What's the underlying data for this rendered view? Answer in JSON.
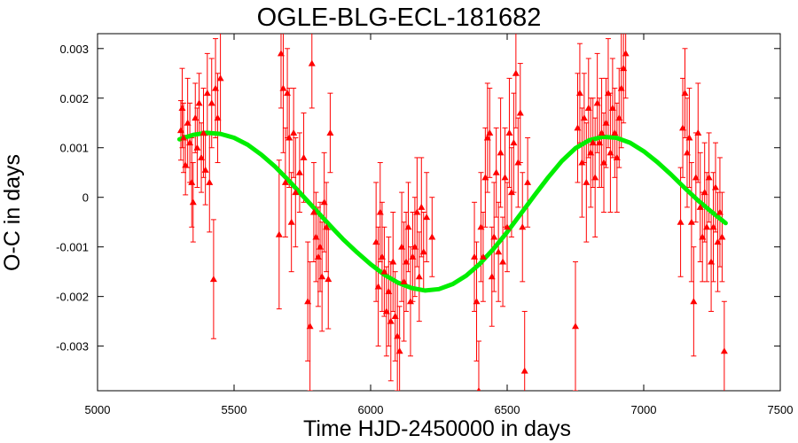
{
  "chart_data": {
    "type": "scatter",
    "title": "OGLE-BLG-ECL-181682",
    "xlabel": "Time HJD-2450000 in days",
    "ylabel": "O-C in days",
    "xlim": [
      5000,
      7500
    ],
    "ylim": [
      -0.0039,
      0.0033
    ],
    "x_ticks": [
      5000,
      5500,
      6000,
      6500,
      7000,
      7500
    ],
    "x_tick_labels": [
      "5000",
      "5500",
      "6000",
      "6500",
      "7000",
      "7500"
    ],
    "y_ticks": [
      0.003,
      0.002,
      0.001,
      0,
      -0.001,
      -0.002,
      -0.003
    ],
    "y_tick_labels": [
      "0.003",
      "0.002",
      "0.001",
      "0",
      "-0.001",
      "-0.002",
      "-0.003"
    ],
    "grid": false,
    "colors": {
      "points": "#ff0000",
      "fit": "#00ee00",
      "axes": "#000000"
    },
    "series": [
      {
        "marker": "triangle",
        "points": [
          {
            "x": 5305,
            "y": 0.00135,
            "err": 0.0006
          },
          {
            "x": 5310,
            "y": 0.0018,
            "err": 0.0008
          },
          {
            "x": 5315,
            "y": 0.0012,
            "err": 0.0007
          },
          {
            "x": 5322,
            "y": 0.00065,
            "err": 0.0006
          },
          {
            "x": 5330,
            "y": 0.0015,
            "err": 0.0009
          },
          {
            "x": 5338,
            "y": 0.0011,
            "err": 0.0008
          },
          {
            "x": 5345,
            "y": 0.0003,
            "err": 0.0009
          },
          {
            "x": 5350,
            "y": -0.0001,
            "err": 0.0008
          },
          {
            "x": 5358,
            "y": 0.0016,
            "err": 0.0007
          },
          {
            "x": 5365,
            "y": 0.001,
            "err": 0.0008
          },
          {
            "x": 5372,
            "y": 0.0019,
            "err": 0.0006
          },
          {
            "x": 5380,
            "y": 0.0008,
            "err": 0.0007
          },
          {
            "x": 5388,
            "y": 0.0013,
            "err": 0.0009
          },
          {
            "x": 5395,
            "y": 0.00055,
            "err": 0.0007
          },
          {
            "x": 5402,
            "y": 0.0021,
            "err": 0.0008
          },
          {
            "x": 5410,
            "y": 0.0003,
            "err": 0.001
          },
          {
            "x": 5418,
            "y": 0.0019,
            "err": 0.0009
          },
          {
            "x": 5425,
            "y": -0.00165,
            "err": 0.0012
          },
          {
            "x": 5432,
            "y": 0.0022,
            "err": 0.001
          },
          {
            "x": 5440,
            "y": 0.0016,
            "err": 0.0009
          },
          {
            "x": 5450,
            "y": 0.0024,
            "err": 0.0011
          },
          {
            "x": 5665,
            "y": -0.00075,
            "err": 0.0015
          },
          {
            "x": 5672,
            "y": 0.0029,
            "err": 0.0011
          },
          {
            "x": 5680,
            "y": 0.0022,
            "err": 0.0013
          },
          {
            "x": 5688,
            "y": 0.0003,
            "err": 0.0011
          },
          {
            "x": 5695,
            "y": 0.0021,
            "err": 0.0009
          },
          {
            "x": 5702,
            "y": 0.0012,
            "err": 0.001
          },
          {
            "x": 5710,
            "y": -0.0005,
            "err": 0.001
          },
          {
            "x": 5718,
            "y": 0.0013,
            "err": 0.0009
          },
          {
            "x": 5725,
            "y": 0.0001,
            "err": 0.0011
          },
          {
            "x": 5740,
            "y": 0.0005,
            "err": 0.0008
          },
          {
            "x": 5755,
            "y": 0.0008,
            "err": 0.0009
          },
          {
            "x": 5770,
            "y": -0.0021,
            "err": 0.0012
          },
          {
            "x": 5778,
            "y": -0.0026,
            "err": 0.0013
          },
          {
            "x": 5785,
            "y": 0.0027,
            "err": 0.0009
          },
          {
            "x": 5792,
            "y": -0.0003,
            "err": 0.001
          },
          {
            "x": 5800,
            "y": -0.0008,
            "err": 0.0009
          },
          {
            "x": 5808,
            "y": -0.0012,
            "err": 0.001
          },
          {
            "x": 5815,
            "y": -0.001,
            "err": 0.0009
          },
          {
            "x": 5822,
            "y": -0.0016,
            "err": 0.0011
          },
          {
            "x": 5830,
            "y": -0.0001,
            "err": 0.001
          },
          {
            "x": 5838,
            "y": -0.0006,
            "err": 0.0009
          },
          {
            "x": 5845,
            "y": -0.00165,
            "err": 0.001
          },
          {
            "x": 5852,
            "y": 0.0013,
            "err": 0.0008
          },
          {
            "x": 6020,
            "y": -0.0009,
            "err": 0.0012
          },
          {
            "x": 6028,
            "y": -0.0018,
            "err": 0.0012
          },
          {
            "x": 6035,
            "y": -0.0003,
            "err": 0.001
          },
          {
            "x": 6042,
            "y": -0.0012,
            "err": 0.0011
          },
          {
            "x": 6050,
            "y": -0.0015,
            "err": 0.0009
          },
          {
            "x": 6058,
            "y": -0.0023,
            "err": 0.0009
          },
          {
            "x": 6066,
            "y": -0.0019,
            "err": 0.0011
          },
          {
            "x": 6074,
            "y": -0.0025,
            "err": 0.0012
          },
          {
            "x": 6082,
            "y": -0.0013,
            "err": 0.001
          },
          {
            "x": 6090,
            "y": -0.0024,
            "err": 0.0009
          },
          {
            "x": 6098,
            "y": -0.0028,
            "err": 0.0011
          },
          {
            "x": 6106,
            "y": -0.0031,
            "err": 0.0009
          },
          {
            "x": 6114,
            "y": -0.001,
            "err": 0.0011
          },
          {
            "x": 6122,
            "y": -0.0017,
            "err": 0.0012
          },
          {
            "x": 6130,
            "y": -0.0013,
            "err": 0.001
          },
          {
            "x": 6138,
            "y": -0.0006,
            "err": 0.0009
          },
          {
            "x": 6146,
            "y": -0.0021,
            "err": 0.0011
          },
          {
            "x": 6154,
            "y": -0.0012,
            "err": 0.0009
          },
          {
            "x": 6162,
            "y": -0.001,
            "err": 0.001
          },
          {
            "x": 6170,
            "y": -0.0003,
            "err": 0.0011
          },
          {
            "x": 6178,
            "y": -0.0016,
            "err": 0.0009
          },
          {
            "x": 6186,
            "y": -0.0002,
            "err": 0.001
          },
          {
            "x": 6194,
            "y": -0.0011,
            "err": 0.0008
          },
          {
            "x": 6205,
            "y": -0.0004,
            "err": 0.0009
          },
          {
            "x": 6225,
            "y": -0.0008,
            "err": 0.0008
          },
          {
            "x": 6380,
            "y": -0.0012,
            "err": 0.0011
          },
          {
            "x": 6388,
            "y": -0.0021,
            "err": 0.0012
          },
          {
            "x": 6396,
            "y": -0.0039,
            "err": 0.001
          },
          {
            "x": 6404,
            "y": -0.0006,
            "err": 0.0011
          },
          {
            "x": 6412,
            "y": -0.0012,
            "err": 0.0009
          },
          {
            "x": 6420,
            "y": 0.0004,
            "err": 0.001
          },
          {
            "x": 6428,
            "y": 0.0012,
            "err": 0.0011
          },
          {
            "x": 6436,
            "y": 0.0013,
            "err": 0.0009
          },
          {
            "x": 6444,
            "y": -0.0016,
            "err": 0.001
          },
          {
            "x": 6452,
            "y": -0.0008,
            "err": 0.0011
          },
          {
            "x": 6460,
            "y": 0.0005,
            "err": 0.0009
          },
          {
            "x": 6468,
            "y": -0.0011,
            "err": 0.001
          },
          {
            "x": 6476,
            "y": 0.0009,
            "err": 0.0011
          },
          {
            "x": 6484,
            "y": -0.0013,
            "err": 0.0009
          },
          {
            "x": 6492,
            "y": 0.0004,
            "err": 0.001
          },
          {
            "x": 6500,
            "y": -0.0006,
            "err": 0.0009
          },
          {
            "x": 6508,
            "y": 0.0013,
            "err": 0.0011
          },
          {
            "x": 6516,
            "y": 0.0001,
            "err": 0.0009
          },
          {
            "x": 6524,
            "y": 0.0011,
            "err": 0.001
          },
          {
            "x": 6532,
            "y": 0.0025,
            "err": 0.0011
          },
          {
            "x": 6540,
            "y": 0.0007,
            "err": 0.0009
          },
          {
            "x": 6548,
            "y": 0.0017,
            "err": 0.001
          },
          {
            "x": 6556,
            "y": -0.0006,
            "err": 0.0011
          },
          {
            "x": 6564,
            "y": -0.0035,
            "err": 0.0012
          },
          {
            "x": 6575,
            "y": 0.0003,
            "err": 0.0009
          },
          {
            "x": 6750,
            "y": -0.0026,
            "err": 0.0013
          },
          {
            "x": 6758,
            "y": 0.0014,
            "err": 0.0011
          },
          {
            "x": 6766,
            "y": 0.0021,
            "err": 0.001
          },
          {
            "x": 6774,
            "y": 0.0007,
            "err": 0.0011
          },
          {
            "x": 6782,
            "y": 0.0016,
            "err": 0.0009
          },
          {
            "x": 6790,
            "y": 0.0003,
            "err": 0.0012
          },
          {
            "x": 6798,
            "y": 0.0018,
            "err": 0.001
          },
          {
            "x": 6806,
            "y": 0.0009,
            "err": 0.0011
          },
          {
            "x": 6814,
            "y": 0.0011,
            "err": 0.0009
          },
          {
            "x": 6822,
            "y": 0.0004,
            "err": 0.0012
          },
          {
            "x": 6830,
            "y": 0.0019,
            "err": 0.001
          },
          {
            "x": 6838,
            "y": 0.0011,
            "err": 0.0009
          },
          {
            "x": 6846,
            "y": 0.0013,
            "err": 0.0011
          },
          {
            "x": 6854,
            "y": 0.0007,
            "err": 0.001
          },
          {
            "x": 6862,
            "y": 0.0015,
            "err": 0.0009
          },
          {
            "x": 6870,
            "y": 0.0021,
            "err": 0.0011
          },
          {
            "x": 6878,
            "y": 0.0009,
            "err": 0.0012
          },
          {
            "x": 6886,
            "y": 0.0018,
            "err": 0.001
          },
          {
            "x": 6894,
            "y": 0.0013,
            "err": 0.0009
          },
          {
            "x": 6902,
            "y": 0.0008,
            "err": 0.0011
          },
          {
            "x": 6910,
            "y": 0.0016,
            "err": 0.001
          },
          {
            "x": 6918,
            "y": 0.0022,
            "err": 0.0012
          },
          {
            "x": 6926,
            "y": 0.0026,
            "err": 0.0011
          },
          {
            "x": 6934,
            "y": 0.0029,
            "err": 0.0009
          },
          {
            "x": 7135,
            "y": -0.0005,
            "err": 0.0011
          },
          {
            "x": 7143,
            "y": 0.0014,
            "err": 0.001
          },
          {
            "x": 7151,
            "y": 0.0021,
            "err": 0.0009
          },
          {
            "x": 7159,
            "y": 0.0009,
            "err": 0.0011
          },
          {
            "x": 7167,
            "y": 0.0012,
            "err": 0.001
          },
          {
            "x": 7175,
            "y": -0.0005,
            "err": 0.0012
          },
          {
            "x": 7183,
            "y": -0.0021,
            "err": 0.0011
          },
          {
            "x": 7191,
            "y": 0.0004,
            "err": 0.0009
          },
          {
            "x": 7199,
            "y": 0.0013,
            "err": 0.001
          },
          {
            "x": 7207,
            "y": -0.0002,
            "err": 0.0011
          },
          {
            "x": 7215,
            "y": -0.0008,
            "err": 0.0009
          },
          {
            "x": 7223,
            "y": 0.0001,
            "err": 0.001
          },
          {
            "x": 7231,
            "y": -0.0006,
            "err": 0.0011
          },
          {
            "x": 7239,
            "y": 0.0004,
            "err": 0.0009
          },
          {
            "x": 7247,
            "y": -0.0013,
            "err": 0.001
          },
          {
            "x": 7255,
            "y": -0.0006,
            "err": 0.0011
          },
          {
            "x": 7263,
            "y": 0.0002,
            "err": 0.0009
          },
          {
            "x": 7271,
            "y": -0.0009,
            "err": 0.001
          },
          {
            "x": 7279,
            "y": -0.0003,
            "err": 0.0011
          },
          {
            "x": 7287,
            "y": -0.0008,
            "err": 0.0009
          },
          {
            "x": 7295,
            "y": -0.0031,
            "err": 0.001
          }
        ]
      }
    ],
    "fit": {
      "type": "sinusoid",
      "x_start": 5300,
      "x_end": 7300,
      "x": [
        5300,
        5350,
        5400,
        5450,
        5500,
        5550,
        5600,
        5650,
        5700,
        5750,
        5800,
        5850,
        5900,
        5950,
        6000,
        6050,
        6100,
        6150,
        6200,
        6250,
        6300,
        6350,
        6400,
        6450,
        6500,
        6550,
        6600,
        6650,
        6700,
        6750,
        6800,
        6850,
        6900,
        6950,
        7000,
        7050,
        7100,
        7150,
        7200,
        7250,
        7300
      ],
      "y": [
        0.00117,
        0.00126,
        0.0013,
        0.00128,
        0.0012,
        0.00106,
        0.00086,
        0.00062,
        0.00034,
        4e-05,
        -0.00026,
        -0.00056,
        -0.00085,
        -0.00111,
        -0.00135,
        -0.00156,
        -0.00172,
        -0.00183,
        -0.00188,
        -0.00185,
        -0.00175,
        -0.00158,
        -0.00134,
        -0.00104,
        -0.0007,
        -0.00033,
        4e-05,
        0.0004,
        0.00073,
        0.00099,
        0.00115,
        0.00122,
        0.0012,
        0.0011,
        0.00093,
        0.00071,
        0.00046,
        0.00019,
        -7e-05,
        -0.0003,
        -0.00052
      ]
    }
  }
}
